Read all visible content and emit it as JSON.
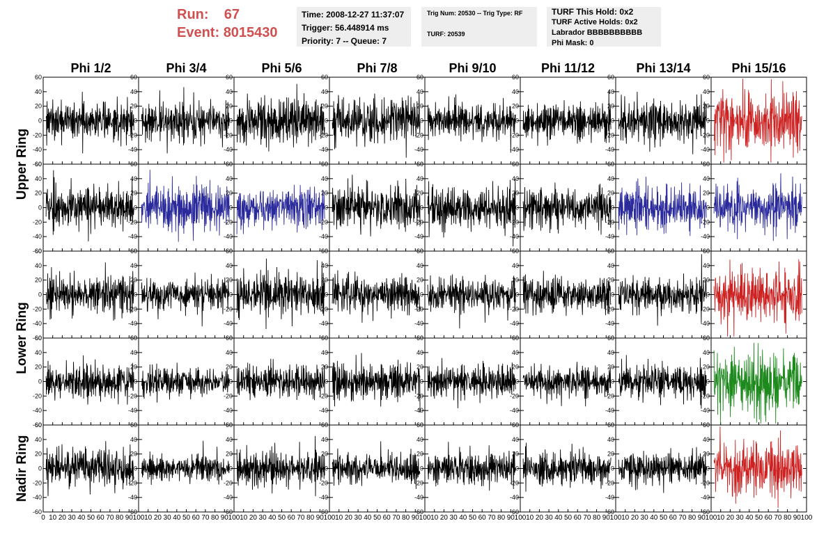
{
  "header": {
    "run_label": "Run:",
    "run_value": "67",
    "event_label": "Event:",
    "event_value": "8015430",
    "time": "Time: 2008-12-27 11:37:07",
    "trigger": "Trigger: 56.448914 ms",
    "priority_queue": "Priority: 7 -- Queue: 7",
    "trig_num_type": "Trig Num: 20530 -- Trig Type: RF",
    "turf": "TURF: 20539",
    "turf_this_hold": "TURF This Hold: 0x2",
    "turf_active_holds": "TURF Active Holds: 0x2",
    "labrador": "Labrador BBBBBBBBBB",
    "phi_mask": "Phi Mask: 0"
  },
  "colors": {
    "black": "#000000",
    "red": "#cc2222",
    "blue": "#2a2a9c",
    "green": "#1e8a1e",
    "header_red": "#d05050",
    "info_bg": "#eeeeee"
  },
  "chart_data": {
    "type": "line",
    "columns": [
      "Phi 1/2",
      "Phi 3/4",
      "Phi 5/6",
      "Phi 7/8",
      "Phi 9/10",
      "Phi 11/12",
      "Phi 13/14",
      "Phi 15/16"
    ],
    "row_labels": [
      {
        "label": "Upper Ring",
        "rows": [
          0,
          1
        ]
      },
      {
        "label": "Lower Ring",
        "rows": [
          2,
          3
        ]
      },
      {
        "label": "Nadir Ring",
        "rows": [
          4
        ]
      }
    ],
    "xlim": [
      0,
      100
    ],
    "ylim": [
      -60,
      60
    ],
    "x_ticks": [
      0,
      10,
      20,
      30,
      40,
      50,
      60,
      70,
      80,
      90,
      100
    ],
    "y_ticks": [
      -60,
      -40,
      -20,
      0,
      20,
      40,
      60
    ],
    "n_samples": 260,
    "panel_colors": [
      [
        "black",
        "black",
        "black",
        "black",
        "black",
        "black",
        "black",
        "red"
      ],
      [
        "black",
        "blue",
        "blue",
        "black",
        "black",
        "black",
        "blue",
        "blue"
      ],
      [
        "black",
        "black",
        "black",
        "black",
        "black",
        "black",
        "black",
        "red"
      ],
      [
        "black",
        "black",
        "black",
        "black",
        "black",
        "black",
        "black",
        "green"
      ],
      [
        "black",
        "black",
        "black",
        "black",
        "black",
        "black",
        "black",
        "red"
      ]
    ],
    "panel_amplitudes": [
      [
        14,
        15,
        17,
        17,
        13,
        12,
        15,
        24
      ],
      [
        16,
        16,
        15,
        17,
        15,
        15,
        16,
        17
      ],
      [
        14,
        13,
        17,
        15,
        14,
        13,
        15,
        21
      ],
      [
        13,
        11,
        13,
        14,
        12,
        12,
        13,
        22
      ],
      [
        15,
        10,
        14,
        11,
        12,
        13,
        12,
        20
      ]
    ]
  }
}
